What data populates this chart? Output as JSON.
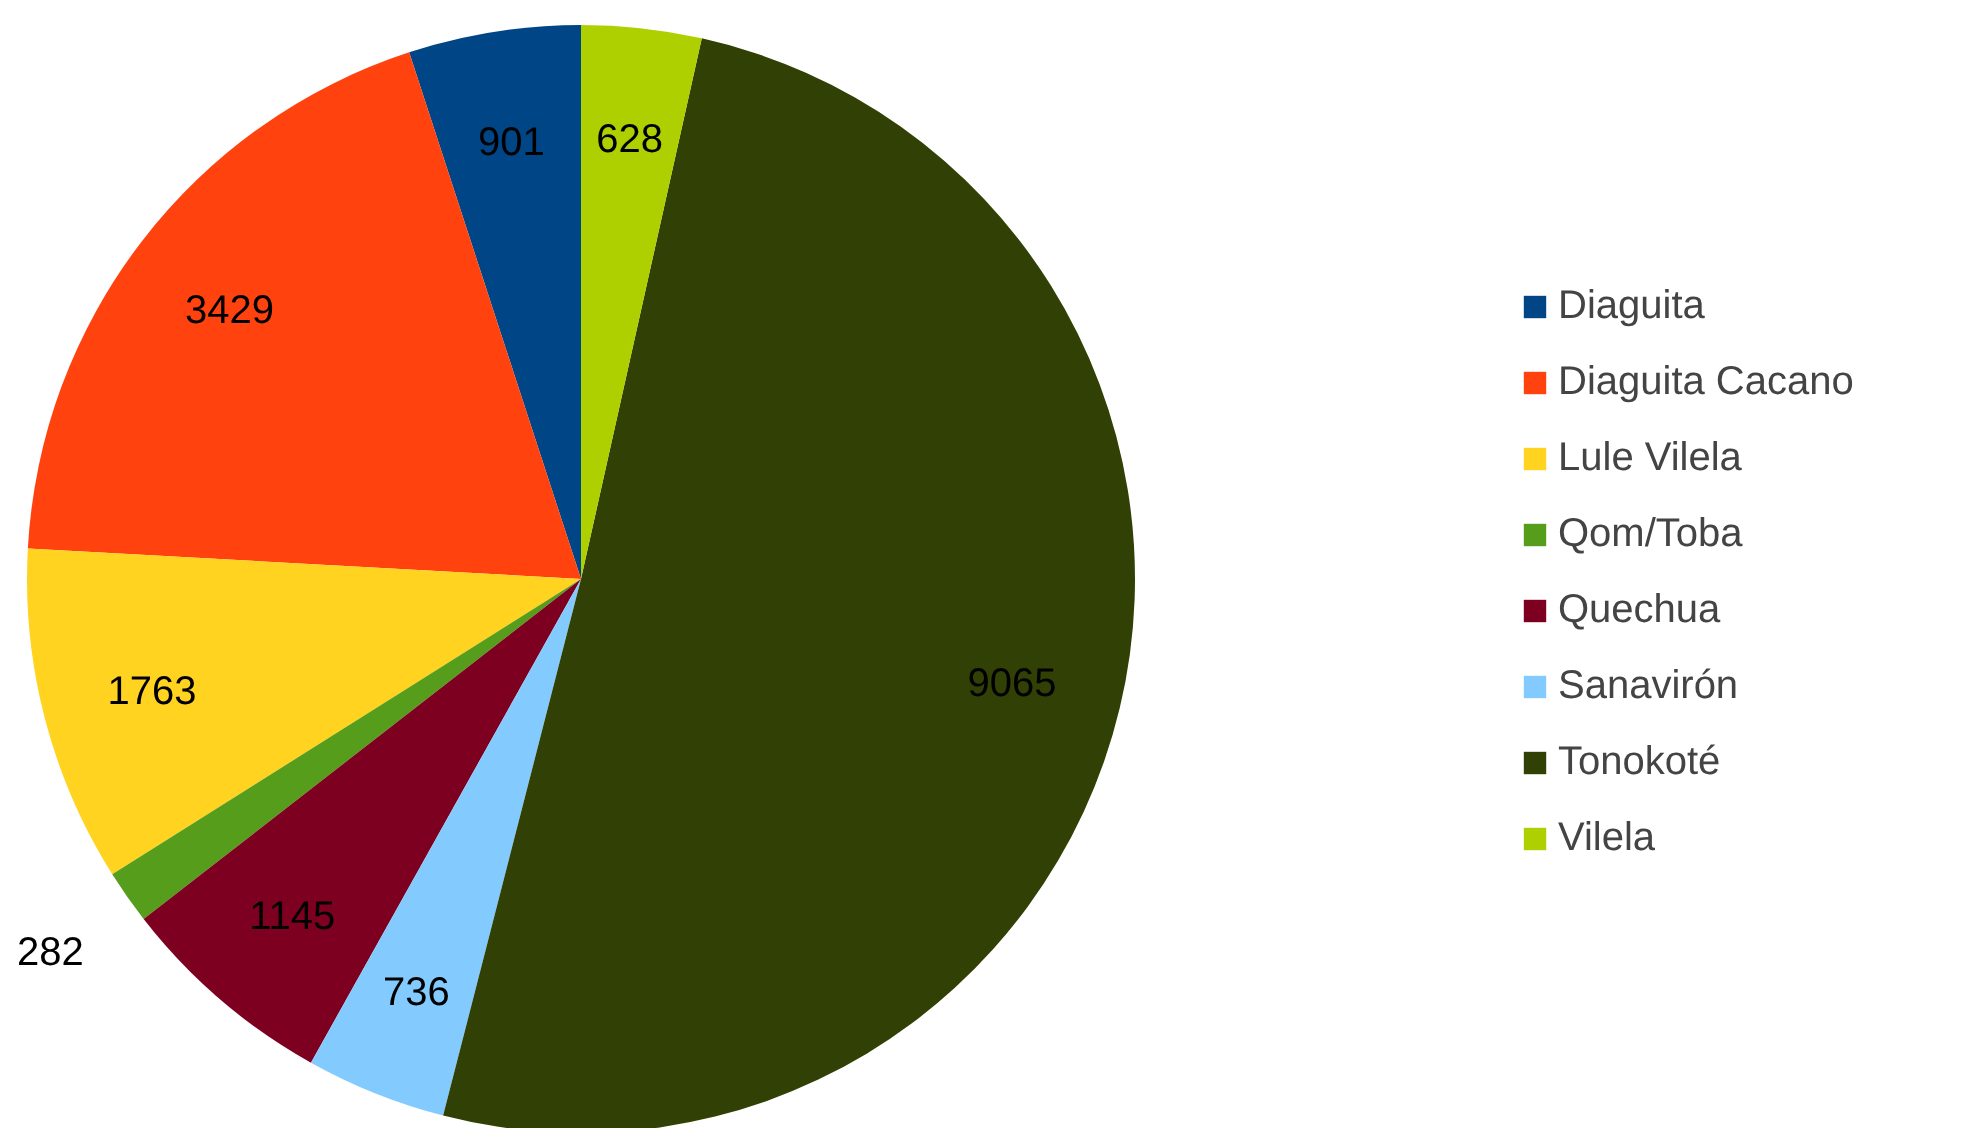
{
  "chart_data": {
    "type": "pie",
    "categories": [
      "Diaguita",
      "Diaguita Cacano",
      "Lule Vilela",
      "Qom/Toba",
      "Quechua",
      "Sanavirón",
      "Tonokoté",
      "Vilela"
    ],
    "values": [
      901,
      3429,
      1763,
      282,
      1145,
      736,
      9065,
      628
    ],
    "colors": [
      "#004586",
      "#ff420e",
      "#ffd320",
      "#579d1c",
      "#7e0021",
      "#83caff",
      "#314004",
      "#aecf00"
    ],
    "data_labels": true,
    "legend": "right"
  }
}
